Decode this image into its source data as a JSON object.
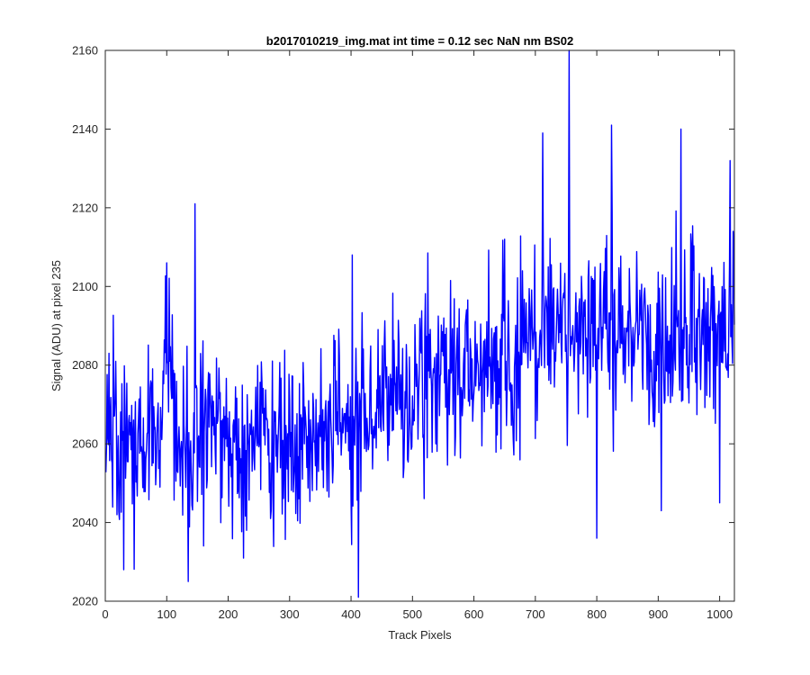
{
  "chart_data": {
    "type": "line",
    "title": "b2017010219_img.mat int time = 0.12 sec  NaN nm BS02",
    "xlabel": "Track Pixels",
    "ylabel": "Signal (ADU) at pixel 235",
    "xlim": [
      0,
      1024
    ],
    "ylim": [
      2020,
      2160
    ],
    "xticks": [
      "0",
      "100",
      "200",
      "300",
      "400",
      "500",
      "600",
      "700",
      "800",
      "900",
      "1000"
    ],
    "yticks": [
      "2020",
      "2040",
      "2060",
      "2080",
      "2100",
      "2120",
      "2140",
      "2160"
    ],
    "grid": false,
    "line_color": "#0000ff",
    "series": [
      {
        "x_start": 1,
        "x_step": 10,
        "values": [
          2072,
          2066,
          2055,
          2070,
          2063,
          2058,
          2062,
          2057,
          2060,
          2066,
          2085,
          2067,
          2058,
          2062,
          2061,
          2060,
          2066,
          2070,
          2068,
          2059,
          2063,
          2061,
          2057,
          2062,
          2065,
          2063,
          2067,
          2060,
          2061,
          2064,
          2062,
          2059,
          2064,
          2056,
          2063,
          2060,
          2063,
          2067,
          2068,
          2066,
          2064,
          2069,
          2065,
          2068,
          2067,
          2072,
          2074,
          2071,
          2075,
          2073,
          2070,
          2073,
          2075,
          2074,
          2071,
          2078,
          2079,
          2077,
          2078,
          2080,
          2077,
          2083,
          2081,
          2082,
          2078,
          2081,
          2080,
          2084,
          2088,
          2087,
          2085,
          2086,
          2089,
          2091,
          2088,
          2092,
          2090,
          2088,
          2087,
          2092,
          2089,
          2091,
          2088,
          2086,
          2090,
          2088,
          2090,
          2091,
          2092,
          2087,
          2089,
          2086,
          2088,
          2087,
          2085,
          2090,
          2086,
          2088,
          2084,
          2088,
          2089,
          2087,
          2092
        ]
      }
    ],
    "annotations": [
      {
        "x": 30,
        "y": 2028
      },
      {
        "x": 100,
        "y": 2106
      },
      {
        "x": 135,
        "y": 2025
      },
      {
        "x": 146,
        "y": 2121
      },
      {
        "x": 402,
        "y": 2108
      },
      {
        "x": 412,
        "y": 2021
      },
      {
        "x": 650,
        "y": 2112
      },
      {
        "x": 712,
        "y": 2139
      },
      {
        "x": 755,
        "y": 2160
      },
      {
        "x": 800,
        "y": 2036
      },
      {
        "x": 824,
        "y": 2141
      },
      {
        "x": 905,
        "y": 2043
      },
      {
        "x": 937,
        "y": 2140
      },
      {
        "x": 1000,
        "y": 2045
      },
      {
        "x": 1017,
        "y": 2132
      }
    ]
  }
}
